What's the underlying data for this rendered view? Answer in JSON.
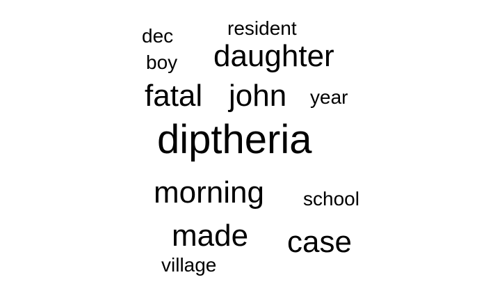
{
  "words": {
    "dec": "dec",
    "resident": "resident",
    "boy": "boy",
    "daughter": "daughter",
    "fatal": "fatal",
    "john": "john",
    "year": "year",
    "diptheria": "diptheria",
    "morning": "morning",
    "school": "school",
    "made": "made",
    "case": "case",
    "village": "village"
  },
  "colors": {
    "background": "#ffffff",
    "text": "#000000"
  }
}
